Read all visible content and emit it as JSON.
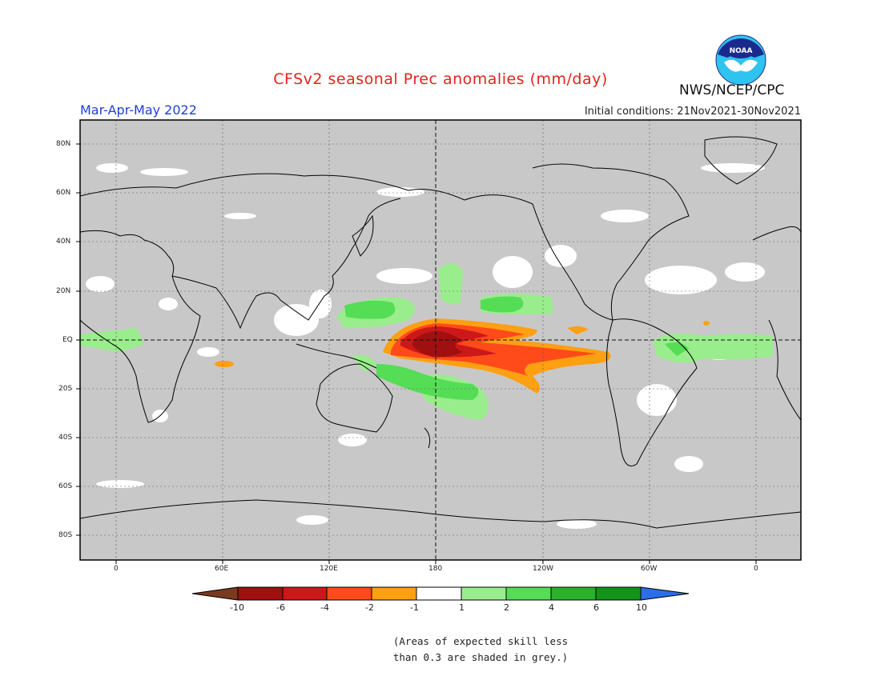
{
  "header": {
    "title": "CFSv2 seasonal Prec anomalies (mm/day)",
    "season": "Mar-Apr-May 2022",
    "initial_conditions": "Initial conditions: 21Nov2021-30Nov2021",
    "agency": "NWS/NCEP/CPC",
    "logo_text": "NOAA"
  },
  "map": {
    "y_axis_labels": [
      "80N",
      "60N",
      "40N",
      "20N",
      "EQ",
      "20S",
      "40S",
      "60S",
      "80S"
    ],
    "x_axis_labels": [
      "0",
      "60E",
      "120E",
      "180",
      "120W",
      "60W",
      "0"
    ],
    "background_color": "#c8c8c8",
    "land_outline_color": "#000000"
  },
  "colorbar": {
    "labels": [
      "-10",
      "-6",
      "-4",
      "-2",
      "-1",
      "1",
      "2",
      "4",
      "6",
      "10"
    ],
    "colors": [
      "#7a3a1e",
      "#a01010",
      "#cc1818",
      "#ff4a1a",
      "#ff9f12",
      "#ffffff",
      "#9aed8c",
      "#55dd55",
      "#2ab22a",
      "#10941a",
      "#2b6ee8"
    ]
  },
  "note": {
    "line1": "(Areas of expected skill less",
    "line2": "than 0.3 are shaded in grey.)"
  }
}
